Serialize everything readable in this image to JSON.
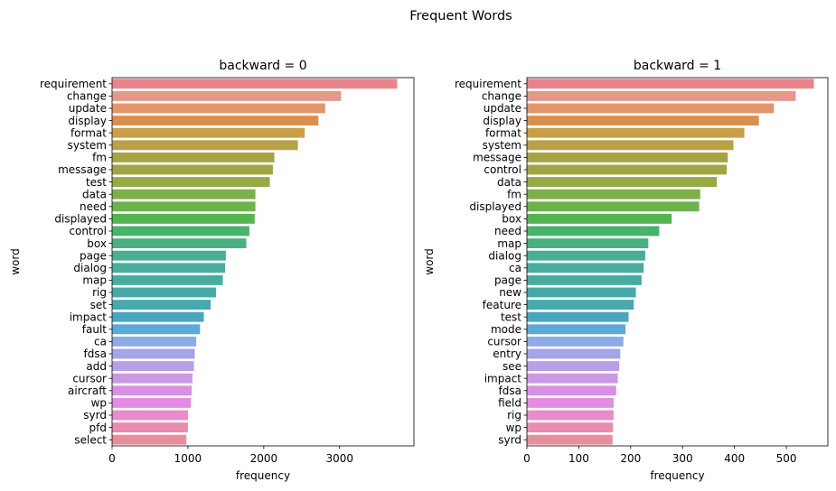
{
  "figure": {
    "title": "Frequent Words"
  },
  "chart_data": [
    {
      "type": "bar",
      "orientation": "horizontal",
      "title": "backward = 0",
      "xlabel": "frequency",
      "ylabel": "word",
      "xlim": [
        0,
        3980
      ],
      "xticks": [
        0,
        1000,
        2000,
        3000
      ],
      "tick_labels": [
        "0",
        "1000",
        "2000",
        "3000"
      ],
      "grid": false,
      "categories": [
        "requirement",
        "change",
        "update",
        "display",
        "format",
        "system",
        "fm",
        "message",
        "test",
        "data",
        "need",
        "displayed",
        "control",
        "box",
        "page",
        "dialog",
        "map",
        "rig",
        "set",
        "impact",
        "fault",
        "ca",
        "fdsa",
        "add",
        "cursor",
        "aircraft",
        "wp",
        "syrd",
        "pfd",
        "select"
      ],
      "values": [
        3760,
        3020,
        2810,
        2720,
        2540,
        2450,
        2140,
        2120,
        2080,
        1890,
        1890,
        1880,
        1810,
        1770,
        1500,
        1490,
        1460,
        1370,
        1300,
        1210,
        1160,
        1110,
        1090,
        1080,
        1060,
        1050,
        1040,
        1000,
        1000,
        980
      ],
      "colors": [
        "#e8858c",
        "#e59888",
        "#e2966a",
        "#dc8f4c",
        "#c99f47",
        "#b9a243",
        "#a6a344",
        "#9da545",
        "#95a946",
        "#7eb04a",
        "#6bb34b",
        "#54b44f",
        "#48b36a",
        "#48b081",
        "#48ae94",
        "#48ad9d",
        "#48ab9f",
        "#47a9a6",
        "#48a8b0",
        "#48a7bf",
        "#5ea9d8",
        "#8fabe3",
        "#a5a4e8",
        "#b89fe7",
        "#cc98e2",
        "#d98fe3",
        "#e58ae5",
        "#e88cca",
        "#e98cb0",
        "#e88d9e"
      ]
    },
    {
      "type": "bar",
      "orientation": "horizontal",
      "title": "backward = 1",
      "xlabel": "frequency",
      "ylabel": "word",
      "xlim": [
        0,
        580
      ],
      "xticks": [
        0,
        100,
        200,
        300,
        400,
        500
      ],
      "tick_labels": [
        "0",
        "100",
        "200",
        "300",
        "400",
        "500"
      ],
      "grid": false,
      "categories": [
        "requirement",
        "change",
        "update",
        "display",
        "format",
        "system",
        "message",
        "control",
        "data",
        "fm",
        "displayed",
        "box",
        "need",
        "map",
        "dialog",
        "ca",
        "page",
        "new",
        "feature",
        "test",
        "mode",
        "cursor",
        "entry",
        "see",
        "impact",
        "fdsa",
        "field",
        "rig",
        "wp",
        "syrd"
      ],
      "values": [
        553,
        518,
        476,
        447,
        419,
        398,
        387,
        385,
        366,
        334,
        332,
        279,
        255,
        234,
        228,
        225,
        221,
        210,
        206,
        196,
        190,
        186,
        180,
        178,
        175,
        172,
        167,
        167,
        166,
        165
      ],
      "colors": [
        "#e8858c",
        "#e59888",
        "#e2966a",
        "#dc8f4c",
        "#c99f47",
        "#b9a243",
        "#a6a344",
        "#9da545",
        "#95a946",
        "#7eb04a",
        "#6bb34b",
        "#54b44f",
        "#48b36a",
        "#48b081",
        "#48ae94",
        "#48ad9d",
        "#48ab9f",
        "#47a9a6",
        "#48a8b0",
        "#48a7bf",
        "#5ea9d8",
        "#8fabe3",
        "#a5a4e8",
        "#b89fe7",
        "#cc98e2",
        "#d98fe3",
        "#e58ae5",
        "#e88cca",
        "#e98cb0",
        "#e88d9e"
      ]
    }
  ]
}
